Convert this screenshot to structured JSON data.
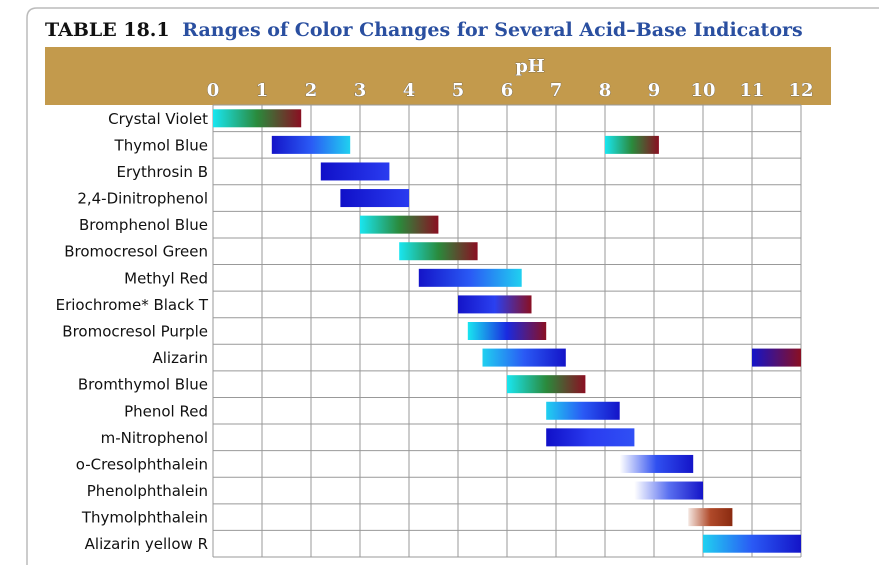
{
  "chart_data": {
    "type": "range",
    "table_number": "TABLE 18.1",
    "title": "Ranges of Color Changes for Several Acid–Base Indicators",
    "x_label": "pH",
    "xlim": [
      0,
      12
    ],
    "xticks": [
      0,
      1,
      2,
      3,
      4,
      5,
      6,
      7,
      8,
      9,
      10,
      11,
      12
    ],
    "grid": true,
    "series": [
      {
        "name": "Crystal Violet",
        "ranges": [
          {
            "low": 0,
            "high": 1.8,
            "colors": [
              "#19e6f0",
              "#2a8a3c",
              "#8a0f22"
            ]
          }
        ]
      },
      {
        "name": "Thymol Blue",
        "ranges": [
          {
            "low": 1.2,
            "high": 2.8,
            "colors": [
              "#1414c8",
              "#2a5af5",
              "#20d0f0"
            ]
          },
          {
            "low": 8.0,
            "high": 9.1,
            "colors": [
              "#19e6f0",
              "#2a8a3c",
              "#8a0f22"
            ]
          }
        ]
      },
      {
        "name": "Erythrosin B",
        "ranges": [
          {
            "low": 2.2,
            "high": 3.6,
            "colors": [
              "#1010c8",
              "#2a3cf0"
            ]
          }
        ]
      },
      {
        "name": "2,4-Dinitrophenol",
        "ranges": [
          {
            "low": 2.6,
            "high": 4.0,
            "colors": [
              "#1010c8",
              "#2a3cf0"
            ]
          }
        ]
      },
      {
        "name": "Bromphenol Blue",
        "ranges": [
          {
            "low": 3.0,
            "high": 4.6,
            "colors": [
              "#19e6f0",
              "#2a8a3c",
              "#8a0f22"
            ]
          }
        ]
      },
      {
        "name": "Bromocresol Green",
        "ranges": [
          {
            "low": 3.8,
            "high": 5.4,
            "colors": [
              "#19e6f0",
              "#2a8a3c",
              "#8a0f22"
            ]
          }
        ]
      },
      {
        "name": "Methyl Red",
        "ranges": [
          {
            "low": 4.2,
            "high": 6.3,
            "colors": [
              "#1414c8",
              "#2a5af5",
              "#20d0f0"
            ]
          }
        ]
      },
      {
        "name": "Eriochrome* Black T",
        "ranges": [
          {
            "low": 5.0,
            "high": 6.5,
            "colors": [
              "#1414c8",
              "#2a40f0",
              "#8a0f22"
            ]
          }
        ]
      },
      {
        "name": "Bromocresol Purple",
        "ranges": [
          {
            "low": 5.2,
            "high": 6.8,
            "colors": [
              "#19e6f0",
              "#1a2ae0",
              "#8a0f22"
            ]
          }
        ]
      },
      {
        "name": "Alizarin",
        "ranges": [
          {
            "low": 5.5,
            "high": 7.2,
            "colors": [
              "#20d0f0",
              "#2a5af5",
              "#1414c8"
            ]
          },
          {
            "low": 11.0,
            "high": 12.0,
            "colors": [
              "#1414c8",
              "#8a0f22"
            ]
          }
        ]
      },
      {
        "name": "Bromthymol Blue",
        "ranges": [
          {
            "low": 6.0,
            "high": 7.6,
            "colors": [
              "#19e6f0",
              "#2a8a3c",
              "#8a0f22"
            ]
          }
        ]
      },
      {
        "name": "Phenol Red",
        "ranges": [
          {
            "low": 6.8,
            "high": 8.3,
            "colors": [
              "#20d0f0",
              "#2a5af5",
              "#1414c8"
            ]
          }
        ]
      },
      {
        "name": "m-Nitrophenol",
        "ranges": [
          {
            "low": 6.8,
            "high": 8.6,
            "colors": [
              "#1010c8",
              "#2a3cf0",
              "#3050f5"
            ]
          }
        ]
      },
      {
        "name": "o-Cresolphthalein",
        "ranges": [
          {
            "low": 8.3,
            "high": 9.8,
            "colors": [
              "#ffffff",
              "#3050f0",
              "#1414c8"
            ]
          }
        ]
      },
      {
        "name": "Phenolphthalein",
        "ranges": [
          {
            "low": 8.6,
            "high": 10.0,
            "colors": [
              "#ffffff",
              "#5a70f0",
              "#1414c8"
            ]
          }
        ]
      },
      {
        "name": "Thymolphthalein",
        "ranges": [
          {
            "low": 9.7,
            "high": 10.6,
            "colors": [
              "#f4e6e0",
              "#b04a2a",
              "#8a2a10"
            ]
          }
        ]
      },
      {
        "name": "Alizarin yellow R",
        "ranges": [
          {
            "low": 10.0,
            "high": 12.0,
            "colors": [
              "#20d0f0",
              "#2a5af5",
              "#1414c8"
            ]
          }
        ]
      }
    ]
  }
}
